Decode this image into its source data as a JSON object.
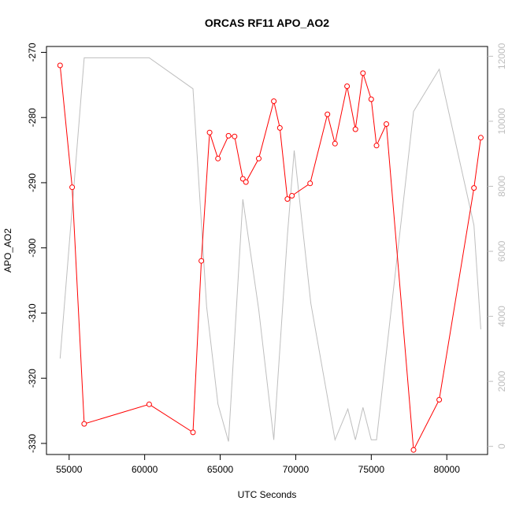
{
  "chart_data": {
    "type": "line",
    "title": "ORCAS RF11 APO_AO2",
    "xlabel": "UTC Seconds",
    "ylabel": "APO_AO2",
    "xlim": [
      53500,
      82700
    ],
    "ylim": [
      -331.7,
      -269.1
    ],
    "y2lim": [
      -250,
      12300
    ],
    "x_ticks": [
      55000,
      60000,
      65000,
      70000,
      75000,
      80000
    ],
    "y_ticks": [
      -330,
      -320,
      -310,
      -300,
      -290,
      -280,
      -270
    ],
    "y2_ticks": [
      0,
      2000,
      4000,
      6000,
      8000,
      10000,
      12000
    ],
    "grid": false,
    "series": [
      {
        "color": "#ff0000",
        "marker": "open-circle",
        "axis": "left",
        "points": [
          [
            54400,
            -272.0
          ],
          [
            55200,
            -290.7
          ],
          [
            56000,
            -327.0
          ],
          [
            60300,
            -324.0
          ],
          [
            63200,
            -328.3
          ],
          [
            63750,
            -302.0
          ],
          [
            64300,
            -282.3
          ],
          [
            64850,
            -286.3
          ],
          [
            65550,
            -282.8
          ],
          [
            65950,
            -282.9
          ],
          [
            66500,
            -289.4
          ],
          [
            66700,
            -289.9
          ],
          [
            67550,
            -286.3
          ],
          [
            68550,
            -277.5
          ],
          [
            68950,
            -281.6
          ],
          [
            69450,
            -292.5
          ],
          [
            69750,
            -292.0
          ],
          [
            70950,
            -290.1
          ],
          [
            72100,
            -279.5
          ],
          [
            72600,
            -284.0
          ],
          [
            73400,
            -275.2
          ],
          [
            73950,
            -281.8
          ],
          [
            74450,
            -273.2
          ],
          [
            75000,
            -277.2
          ],
          [
            75350,
            -284.3
          ],
          [
            76000,
            -281.0
          ],
          [
            77800,
            -331.0
          ],
          [
            79500,
            -323.3
          ],
          [
            81800,
            -290.8
          ],
          [
            82250,
            -283.1
          ]
        ]
      },
      {
        "color": "#bebebe",
        "marker": "none",
        "axis": "right",
        "points": [
          [
            54400,
            2700
          ],
          [
            56000,
            11950
          ],
          [
            60300,
            11950
          ],
          [
            63200,
            11000
          ],
          [
            64100,
            4300
          ],
          [
            64850,
            1300
          ],
          [
            65550,
            150
          ],
          [
            66500,
            7600
          ],
          [
            67550,
            4200
          ],
          [
            68550,
            200
          ],
          [
            69450,
            6500
          ],
          [
            69900,
            9100
          ],
          [
            71000,
            4400
          ],
          [
            72600,
            200
          ],
          [
            73450,
            1150
          ],
          [
            73950,
            200
          ],
          [
            74450,
            1200
          ],
          [
            75000,
            200
          ],
          [
            75350,
            200
          ],
          [
            77800,
            10300
          ],
          [
            79500,
            11600
          ],
          [
            81800,
            6800
          ],
          [
            82250,
            3600
          ]
        ]
      }
    ]
  }
}
